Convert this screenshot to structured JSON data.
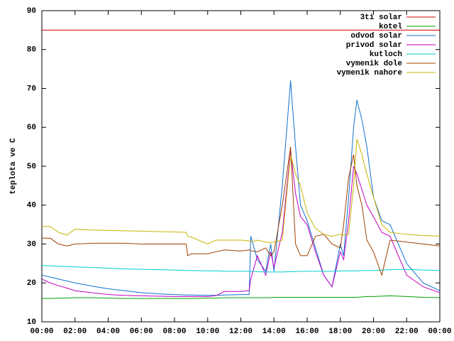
{
  "chart_data": {
    "type": "line",
    "ylabel": "teplota ve C",
    "x": [
      0,
      0.5,
      1,
      1.5,
      2,
      3,
      4,
      5,
      6,
      7,
      8,
      8.7,
      8.8,
      9,
      10,
      10.5,
      11,
      12,
      12.5,
      12.6,
      13,
      13.5,
      13.8,
      14,
      14.5,
      15,
      15.3,
      15.6,
      16,
      16.5,
      17,
      17.5,
      18,
      18.2,
      18.5,
      18.8,
      19,
      19.3,
      19.6,
      20,
      20.5,
      21,
      22,
      23,
      24
    ],
    "xlim": [
      0,
      24
    ],
    "xticks": [
      {
        "value": 0,
        "label": "00:00"
      },
      {
        "value": 2,
        "label": "02:00"
      },
      {
        "value": 4,
        "label": "04:00"
      },
      {
        "value": 6,
        "label": "06:00"
      },
      {
        "value": 8,
        "label": "08:00"
      },
      {
        "value": 10,
        "label": "10:00"
      },
      {
        "value": 12,
        "label": "12:00"
      },
      {
        "value": 14,
        "label": "14:00"
      },
      {
        "value": 16,
        "label": "16:00"
      },
      {
        "value": 18,
        "label": "18:00"
      },
      {
        "value": 20,
        "label": "20:00"
      },
      {
        "value": 22,
        "label": "22:00"
      },
      {
        "value": 24,
        "label": "00:00"
      }
    ],
    "ylim": [
      10,
      90
    ],
    "yticks": [
      10,
      20,
      30,
      40,
      50,
      60,
      70,
      80,
      90
    ],
    "legend": "top-right",
    "grid": false,
    "series": [
      {
        "name": "3ti solar",
        "color": "#cc0000",
        "values": [
          85,
          85,
          85,
          85,
          85,
          85,
          85,
          85,
          85,
          85,
          85,
          85,
          85,
          85,
          85,
          85,
          85,
          85,
          85,
          85,
          85,
          85,
          85,
          85,
          85,
          85,
          85,
          85,
          85,
          85,
          85,
          85,
          85,
          85,
          85,
          85,
          85,
          85,
          85,
          85,
          85,
          85,
          85,
          85,
          85
        ]
      },
      {
        "name": "kotel",
        "color": "#00a000",
        "values": [
          16,
          16,
          16.1,
          16.1,
          16.2,
          16.2,
          16.1,
          16,
          16,
          16,
          16,
          16,
          16,
          16,
          16.1,
          16.1,
          16.2,
          16.2,
          16.2,
          16.2,
          16.2,
          16.2,
          16.2,
          16.3,
          16.3,
          16.3,
          16.3,
          16.3,
          16.3,
          16.3,
          16.3,
          16.3,
          16.3,
          16.3,
          16.3,
          16.3,
          16.3,
          16.4,
          16.5,
          16.5,
          16.6,
          16.7,
          16.5,
          16.3,
          16.2
        ]
      },
      {
        "name": "odvod solar",
        "color": "#1070d0",
        "values": [
          22,
          21.5,
          21,
          20.5,
          20,
          19.2,
          18.5,
          18,
          17.5,
          17.2,
          17,
          16.9,
          16.9,
          16.9,
          16.8,
          16.8,
          16.9,
          17,
          17,
          32,
          26,
          23,
          30,
          23,
          45,
          72,
          55,
          40,
          36,
          29,
          22,
          19,
          30,
          27,
          42,
          60,
          67,
          62,
          55,
          42,
          36,
          35,
          25,
          20,
          18
        ]
      },
      {
        "name": "privod solar",
        "color": "#c000c0",
        "values": [
          21,
          20,
          19.3,
          18.7,
          18,
          17.5,
          17,
          16.8,
          16.7,
          16.6,
          16.5,
          16.5,
          16.5,
          16.5,
          16.5,
          16.7,
          17.8,
          17.8,
          18,
          21,
          27,
          22,
          28,
          24,
          33,
          54,
          43,
          37,
          35,
          28,
          22,
          19,
          28,
          26,
          36,
          50,
          48,
          44,
          40,
          37,
          33,
          32,
          22,
          19,
          17.5
        ]
      },
      {
        "name": "kutloch",
        "color": "#00d0d0",
        "values": [
          24.5,
          24.4,
          24.3,
          24.2,
          24.1,
          24,
          23.8,
          23.6,
          23.5,
          23.4,
          23.3,
          23.2,
          23.2,
          23.2,
          23.1,
          23.1,
          23,
          23,
          23,
          23,
          22.9,
          22.8,
          22.8,
          22.8,
          22.8,
          22.9,
          22.9,
          23,
          23,
          23,
          23,
          23,
          23.1,
          23.1,
          23.1,
          23.1,
          23.1,
          23.2,
          23.2,
          23.2,
          23.3,
          23.4,
          23.5,
          23.3,
          23.2
        ]
      },
      {
        "name": "vymenik dole",
        "color": "#a04000",
        "values": [
          31.5,
          31.5,
          30,
          29.5,
          30,
          30.2,
          30.2,
          30.2,
          30,
          30,
          30,
          30,
          27,
          27.5,
          27.5,
          28,
          28.5,
          28.2,
          28.5,
          28.3,
          28,
          29,
          27,
          28,
          40,
          55,
          30,
          27,
          27,
          32,
          32.5,
          30,
          29,
          35,
          47,
          53,
          45,
          40,
          31,
          28,
          22,
          31,
          30.5,
          30,
          29.5
        ]
      },
      {
        "name": "vymenik nahore",
        "color": "#c8b400",
        "values": [
          34.5,
          34.5,
          33,
          32.3,
          33.8,
          33.6,
          33.5,
          33.4,
          33.3,
          33.2,
          33.1,
          33,
          32,
          31.8,
          30,
          31,
          31,
          31,
          30.8,
          30.5,
          31,
          30.5,
          30.3,
          30.5,
          31,
          53,
          48,
          45,
          38,
          34,
          32.5,
          32,
          32.5,
          32.3,
          32.5,
          45,
          57,
          53,
          48,
          42,
          35,
          33,
          32.5,
          32.2,
          32
        ]
      }
    ]
  }
}
